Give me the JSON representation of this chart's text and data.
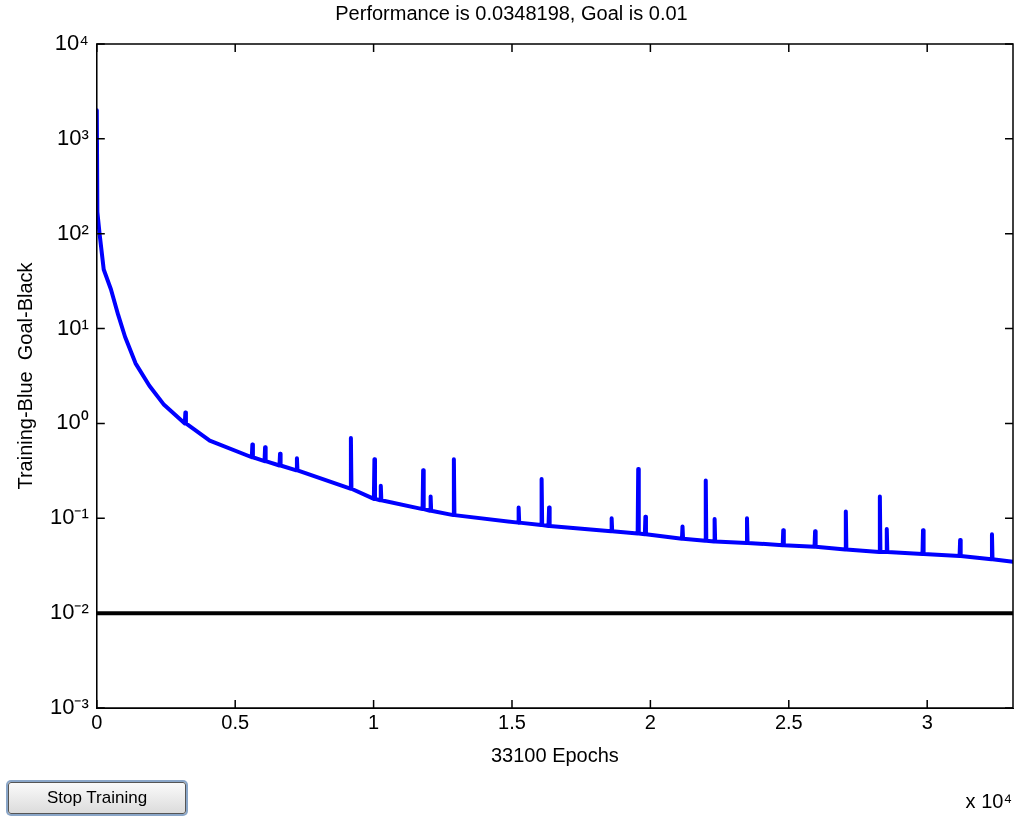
{
  "chart_data": {
    "type": "line",
    "title": "Performance is 0.0348198, Goal is 0.01",
    "xlabel": "33100 Epochs",
    "ylabel": "Training-Blue  Goal-Black",
    "log": "y",
    "grid": false,
    "legend": false,
    "marker": "none",
    "line_style": "solid",
    "xlim": [
      0,
      3.31
    ],
    "xticks": [
      0,
      0.5,
      1,
      1.5,
      2,
      2.5,
      3
    ],
    "ylim": [
      0.001,
      10000
    ],
    "yticks": [
      {
        "value": 0.001,
        "label": "10⁻³"
      },
      {
        "value": 0.01,
        "label": "10⁻²"
      },
      {
        "value": 0.1,
        "label": "10⁻¹"
      },
      {
        "value": 1,
        "label": "10⁰"
      },
      {
        "value": 10,
        "label": "10¹"
      },
      {
        "value": 100,
        "label": "10²"
      },
      {
        "value": 1000,
        "label": "10³"
      },
      {
        "value": 10000,
        "label": "10⁴"
      }
    ],
    "ref_lines": [
      {
        "axis": "y",
        "value": 0.01,
        "color": "#000000",
        "line_style": "solid"
      }
    ],
    "annotations": [
      "x 10⁴",
      "Stop Training"
    ],
    "series": [
      {
        "color": "#0000ff",
        "x": [
          0,
          0.002,
          0.01,
          0.025,
          0.051,
          0.077,
          0.102,
          0.14,
          0.19,
          0.243,
          0.318,
          0.32,
          0.322,
          0.408,
          0.56,
          0.562,
          0.564,
          0.606,
          0.608,
          0.61,
          0.66,
          0.662,
          0.664,
          0.721,
          0.723,
          0.725,
          0.916,
          0.918,
          0.92,
          1.001,
          1.003,
          1.005,
          1.024,
          1.026,
          1.028,
          1.177,
          1.179,
          1.181,
          1.204,
          1.206,
          1.208,
          1.288,
          1.29,
          1.292,
          1.522,
          1.524,
          1.526,
          1.605,
          1.607,
          1.609,
          1.632,
          1.634,
          1.636,
          1.858,
          1.86,
          1.862,
          1.954,
          1.956,
          1.958,
          1.98,
          1.982,
          1.984,
          2.114,
          2.116,
          2.118,
          2.198,
          2.2,
          2.202,
          2.23,
          2.232,
          2.234,
          2.347,
          2.349,
          2.351,
          2.478,
          2.48,
          2.482,
          2.593,
          2.595,
          2.597,
          2.704,
          2.706,
          2.708,
          2.827,
          2.829,
          2.831,
          2.852,
          2.854,
          2.856,
          2.983,
          2.985,
          2.987,
          3.117,
          3.119,
          3.121,
          3.232,
          3.234,
          3.236,
          3.31
        ],
        "values": [
          2000,
          170,
          100,
          42,
          26,
          14,
          8.2,
          4.3,
          2.5,
          1.57,
          1.0,
          1.3,
          1.0,
          0.66,
          0.44,
          0.6,
          0.44,
          0.4,
          0.56,
          0.4,
          0.36,
          0.48,
          0.36,
          0.32,
          0.43,
          0.32,
          0.205,
          0.7,
          0.205,
          0.16,
          0.42,
          0.16,
          0.155,
          0.22,
          0.155,
          0.125,
          0.32,
          0.125,
          0.12,
          0.17,
          0.12,
          0.108,
          0.42,
          0.108,
          0.09,
          0.13,
          0.09,
          0.085,
          0.26,
          0.085,
          0.083,
          0.13,
          0.083,
          0.073,
          0.1,
          0.073,
          0.069,
          0.33,
          0.069,
          0.068,
          0.104,
          0.068,
          0.061,
          0.082,
          0.061,
          0.058,
          0.25,
          0.058,
          0.057,
          0.098,
          0.057,
          0.055,
          0.1,
          0.055,
          0.052,
          0.075,
          0.052,
          0.05,
          0.073,
          0.05,
          0.047,
          0.118,
          0.047,
          0.044,
          0.17,
          0.044,
          0.044,
          0.077,
          0.044,
          0.042,
          0.075,
          0.042,
          0.04,
          0.059,
          0.04,
          0.037,
          0.068,
          0.037,
          0.0348
        ]
      }
    ]
  }
}
